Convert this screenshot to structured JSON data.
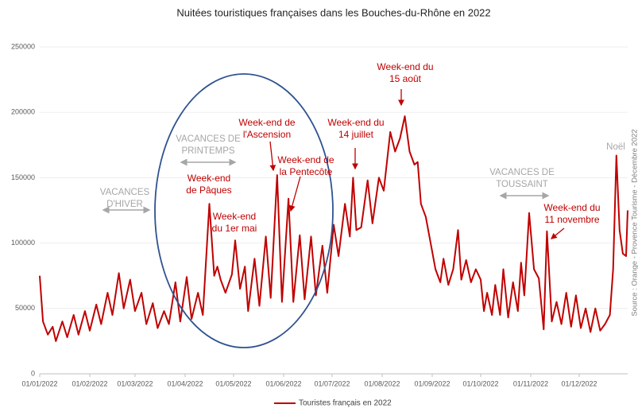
{
  "chart_data": {
    "type": "line",
    "title": "Nuitées touristiques françaises dans les Bouches-du-Rhône  en 2022",
    "source": "Source : Orange - Provence Tourisme - Décembre 2022",
    "xlim": [
      "01/01/2022",
      "31/12/2022"
    ],
    "xticks": [
      "01/01/2022",
      "01/02/2022",
      "01/03/2022",
      "01/04/2022",
      "01/05/2022",
      "01/06/2022",
      "01/07/2022",
      "01/08/2022",
      "01/09/2022",
      "01/10/2022",
      "01/11/2022",
      "01/12/2022"
    ],
    "ylim": [
      0,
      250000
    ],
    "yticks": [
      0,
      50000,
      100000,
      150000,
      200000,
      250000
    ],
    "grid": true,
    "legend": "bottom",
    "x": [
      "01/01/2022",
      "03/01/2022",
      "06/01/2022",
      "09/01/2022",
      "11/01/2022",
      "15/01/2022",
      "18/01/2022",
      "22/01/2022",
      "25/01/2022",
      "29/01/2022",
      "01/02/2022",
      "05/02/2022",
      "08/02/2022",
      "12/02/2022",
      "15/02/2022",
      "19/02/2022",
      "22/02/2022",
      "26/02/2022",
      "01/03/2022",
      "05/03/2022",
      "08/03/2022",
      "12/03/2022",
      "15/03/2022",
      "19/03/2022",
      "22/03/2022",
      "26/03/2022",
      "29/03/2022",
      "02/04/2022",
      "05/04/2022",
      "09/04/2022",
      "12/04/2022",
      "16/04/2022",
      "19/04/2022",
      "21/04/2022",
      "23/04/2022",
      "26/04/2022",
      "30/04/2022",
      "02/05/2022",
      "05/05/2022",
      "08/05/2022",
      "10/05/2022",
      "14/05/2022",
      "17/05/2022",
      "21/05/2022",
      "24/05/2022",
      "28/05/2022",
      "31/05/2022",
      "04/06/2022",
      "07/06/2022",
      "11/06/2022",
      "14/06/2022",
      "18/06/2022",
      "21/06/2022",
      "25/06/2022",
      "28/06/2022",
      "02/07/2022",
      "05/07/2022",
      "09/07/2022",
      "12/07/2022",
      "14/07/2022",
      "16/07/2022",
      "19/07/2022",
      "23/07/2022",
      "26/07/2022",
      "30/07/2022",
      "02/08/2022",
      "06/08/2022",
      "09/08/2022",
      "12/08/2022",
      "15/08/2022",
      "18/08/2022",
      "21/08/2022",
      "23/08/2022",
      "25/08/2022",
      "28/08/2022",
      "31/08/2022",
      "03/09/2022",
      "06/09/2022",
      "08/09/2022",
      "11/09/2022",
      "14/09/2022",
      "17/09/2022",
      "19/09/2022",
      "22/09/2022",
      "25/09/2022",
      "28/09/2022",
      "01/10/2022",
      "03/10/2022",
      "05/10/2022",
      "08/10/2022",
      "10/10/2022",
      "13/10/2022",
      "15/10/2022",
      "18/10/2022",
      "21/10/2022",
      "24/10/2022",
      "26/10/2022",
      "28/10/2022",
      "31/10/2022",
      "03/11/2022",
      "06/11/2022",
      "09/11/2022",
      "11/11/2022",
      "14/11/2022",
      "17/11/2022",
      "20/11/2022",
      "23/11/2022",
      "26/11/2022",
      "29/11/2022",
      "02/12/2022",
      "05/12/2022",
      "08/12/2022",
      "11/12/2022",
      "14/12/2022",
      "17/12/2022",
      "20/12/2022",
      "22/12/2022",
      "24/12/2022",
      "26/12/2022",
      "28/12/2022",
      "30/12/2022",
      "31/12/2022"
    ],
    "series": [
      {
        "name": "Touristes français en 2022",
        "color": "#c00000",
        "values": [
          75000,
          40000,
          30000,
          36000,
          25000,
          40000,
          28000,
          45000,
          30000,
          48000,
          33000,
          53000,
          38000,
          62000,
          45000,
          77000,
          50000,
          72000,
          48000,
          62000,
          38000,
          54000,
          35000,
          48000,
          38000,
          70000,
          40000,
          74000,
          42000,
          62000,
          45000,
          130000,
          75000,
          82000,
          72000,
          62000,
          76000,
          102000,
          65000,
          82000,
          48000,
          88000,
          52000,
          105000,
          58000,
          152000,
          55000,
          134000,
          55000,
          106000,
          57000,
          105000,
          60000,
          98000,
          62000,
          114000,
          90000,
          130000,
          105000,
          150000,
          110000,
          112000,
          148000,
          115000,
          150000,
          140000,
          185000,
          170000,
          180000,
          197000,
          170000,
          160000,
          162000,
          130000,
          120000,
          100000,
          80000,
          70000,
          88000,
          68000,
          80000,
          110000,
          72000,
          87000,
          70000,
          80000,
          72000,
          48000,
          62000,
          45000,
          68000,
          45000,
          80000,
          43000,
          70000,
          48000,
          85000,
          60000,
          123000,
          80000,
          73000,
          34000,
          109000,
          40000,
          55000,
          38000,
          62000,
          36000,
          60000,
          35000,
          50000,
          32000,
          50000,
          33000,
          38000,
          45000,
          80000,
          167000,
          110000,
          92000,
          90000,
          125000
        ]
      }
    ],
    "annotations": [
      {
        "lines": [
          "VACANCES",
          "D'HIVER"
        ],
        "color": "#a6a6a6"
      },
      {
        "lines": [
          "VACANCES DE",
          "PRINTEMPS"
        ],
        "color": "#a6a6a6"
      },
      {
        "lines": [
          "Week-end",
          "de Pâques"
        ],
        "color": "#c00000"
      },
      {
        "lines": [
          "Week-end",
          "du 1er mai"
        ],
        "color": "#c00000"
      },
      {
        "lines": [
          "Week-end de",
          "l'Ascension"
        ],
        "color": "#c00000"
      },
      {
        "lines": [
          "Week-end de",
          "la Pentecôte"
        ],
        "color": "#c00000"
      },
      {
        "lines": [
          "Week-end du",
          "14 juillet"
        ],
        "color": "#c00000"
      },
      {
        "lines": [
          "Week-end du",
          "15 août"
        ],
        "color": "#c00000"
      },
      {
        "lines": [
          "VACANCES DE",
          "TOUSSAINT"
        ],
        "color": "#a6a6a6"
      },
      {
        "lines": [
          "Week-end du",
          "11 novembre"
        ],
        "color": "#c00000"
      },
      {
        "lines": [
          "Noël"
        ],
        "color": "#a6a6a6"
      }
    ]
  }
}
